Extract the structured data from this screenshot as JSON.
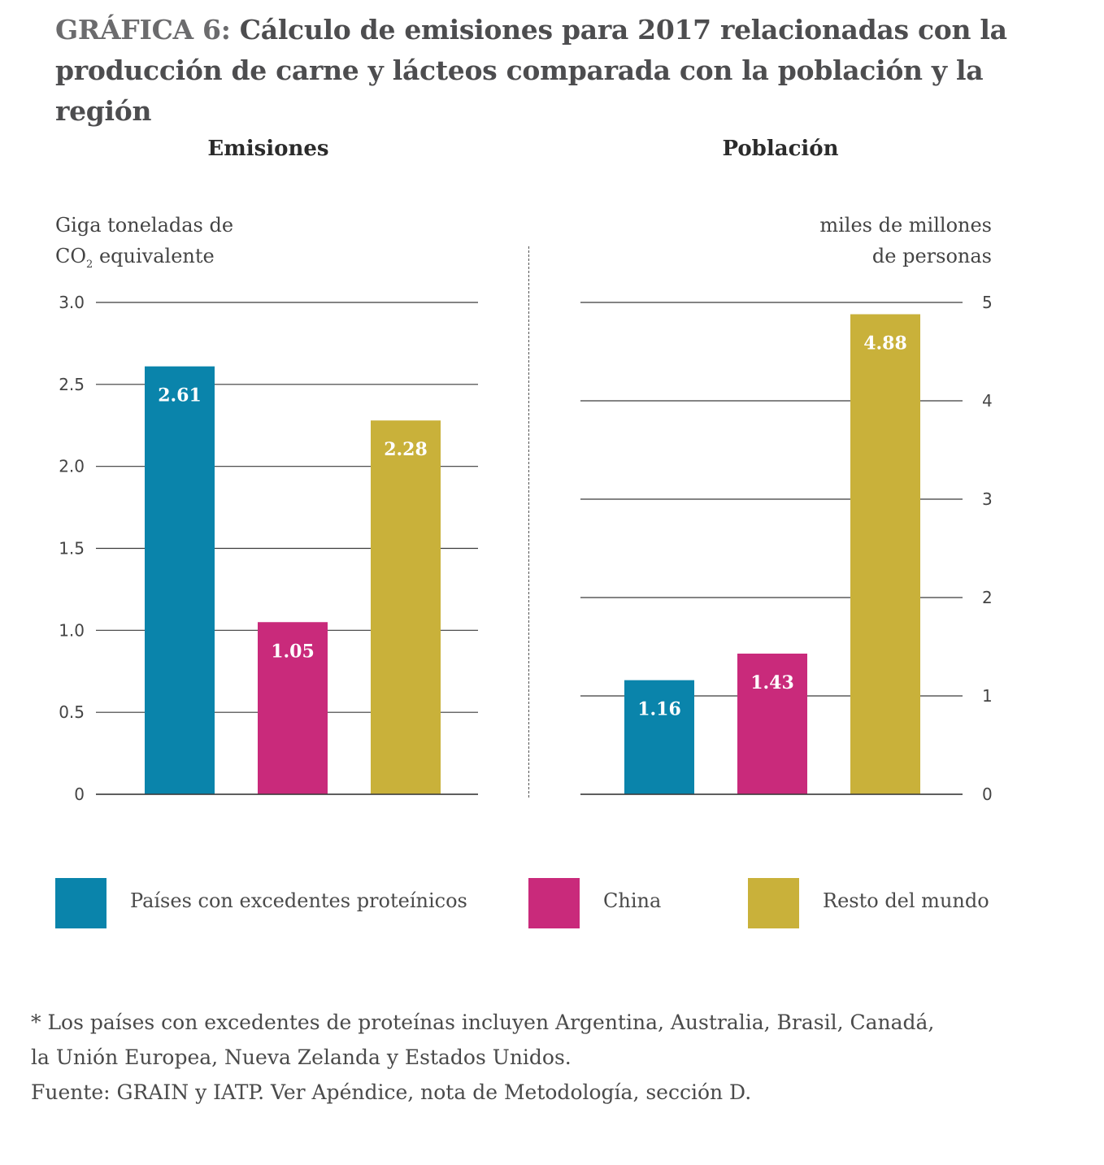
{
  "title": {
    "lead": "GRÁFICA 6:",
    "rest": " Cálculo de emisiones para 2017 relacionadas con la producción de carne y lácteos comparada con la población y la región"
  },
  "colors": {
    "paises": "#0a84ab",
    "china": "#c92a7b",
    "resto": "#c9b13a"
  },
  "legend": [
    {
      "label": "Países con excedentes proteínicos",
      "color": "#0a84ab"
    },
    {
      "label": "China",
      "color": "#c92a7b"
    },
    {
      "label": "Resto del mundo",
      "color": "#c9b13a"
    }
  ],
  "footnote": [
    "* Los países con excedentes de proteínas incluyen Argentina, Australia, Brasil, Canadá,",
    "la Unión Europea, Nueva Zelanda y Estados Unidos.",
    "Fuente: GRAIN y IATP. Ver Apéndice, nota de Metodología, sección D."
  ],
  "chart_data": [
    {
      "type": "bar",
      "title": "Emisiones",
      "ylabel_line1": "Giga toneladas de",
      "ylabel_co": "CO",
      "ylabel_sub": "2",
      "ylabel_rest": " equivalente",
      "categories": [
        "Países con excedentes proteínicos",
        "China",
        "Resto del mundo"
      ],
      "values": [
        2.61,
        1.05,
        2.28
      ],
      "value_labels": [
        "2.61",
        "1.05",
        "2.28"
      ],
      "ylim": [
        0,
        3.0
      ],
      "yticks": [
        0,
        0.5,
        1.0,
        1.5,
        2.0,
        2.5,
        3.0
      ],
      "ytick_labels": [
        "0",
        "0.5",
        "1.0",
        "1.5",
        "2.0",
        "2.5",
        "3.0"
      ],
      "y_axis_side": "left",
      "grid": true
    },
    {
      "type": "bar",
      "title": "Población",
      "ylabel_line1": "miles de millones",
      "ylabel_line2": "de personas",
      "categories": [
        "Países con excedentes proteínicos",
        "China",
        "Resto del mundo"
      ],
      "values": [
        1.16,
        1.43,
        4.88
      ],
      "value_labels": [
        "1.16",
        "1.43",
        "4.88"
      ],
      "ylim": [
        0,
        5
      ],
      "yticks": [
        0,
        1,
        2,
        3,
        4,
        5
      ],
      "ytick_labels": [
        "0",
        "1",
        "2",
        "3",
        "4",
        "5"
      ],
      "y_axis_side": "right",
      "grid": true
    }
  ]
}
